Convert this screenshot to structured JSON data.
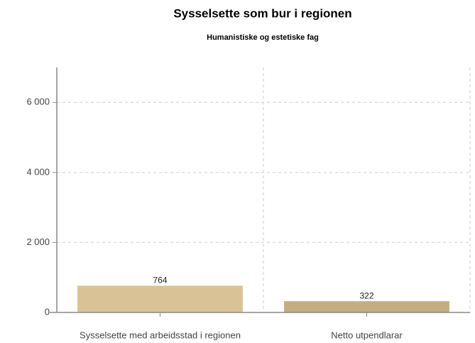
{
  "chart_data": {
    "type": "bar",
    "title": "Sysselsette som bur i regionen",
    "subtitle": "Humanistiske og estetiske fag",
    "categories": [
      "Sysselsette med arbeidsstad i regionen",
      "Netto utpendlarar"
    ],
    "values": [
      764,
      322
    ],
    "colors": [
      "#d9c396",
      "#c4ad80"
    ],
    "ylim": [
      0,
      7000
    ],
    "yticks": [
      0,
      {
        "value": 2000,
        "label": "2 000"
      },
      {
        "value": 4000,
        "label": "4 000"
      },
      {
        "value": 6000,
        "label": "6 000"
      }
    ],
    "grid": true
  }
}
